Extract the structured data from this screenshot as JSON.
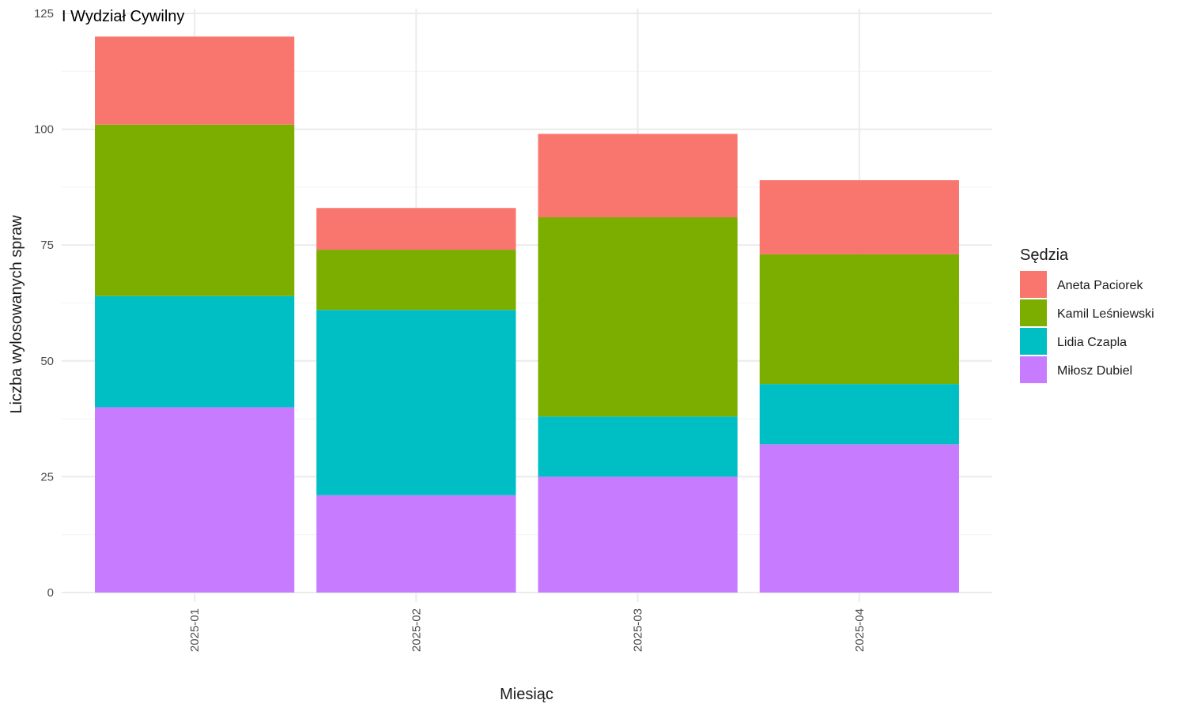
{
  "chart_data": {
    "type": "bar",
    "stacked": true,
    "title": "I Wydział Cywilny",
    "xlabel": "Miesiąc",
    "ylabel": "Liczba wylosowanych spraw",
    "categories": [
      "2025-01",
      "2025-02",
      "2025-03",
      "2025-04"
    ],
    "ylim": [
      0,
      125
    ],
    "yticks": [
      0,
      25,
      50,
      75,
      100,
      125
    ],
    "grid": true,
    "legend": {
      "title": "Sędzia",
      "position": "right"
    },
    "series": [
      {
        "name": "Miłosz Dubiel",
        "color": "#C77CFF",
        "values": [
          40,
          21,
          25,
          32
        ]
      },
      {
        "name": "Lidia Czapla",
        "color": "#00BFC4",
        "values": [
          24,
          40,
          13,
          13
        ]
      },
      {
        "name": "Kamil Leśniewski",
        "color": "#7CAE00",
        "values": [
          37,
          13,
          43,
          28
        ]
      },
      {
        "name": "Aneta Paciorek",
        "color": "#F8766D",
        "values": [
          19,
          9,
          18,
          16
        ]
      }
    ]
  }
}
